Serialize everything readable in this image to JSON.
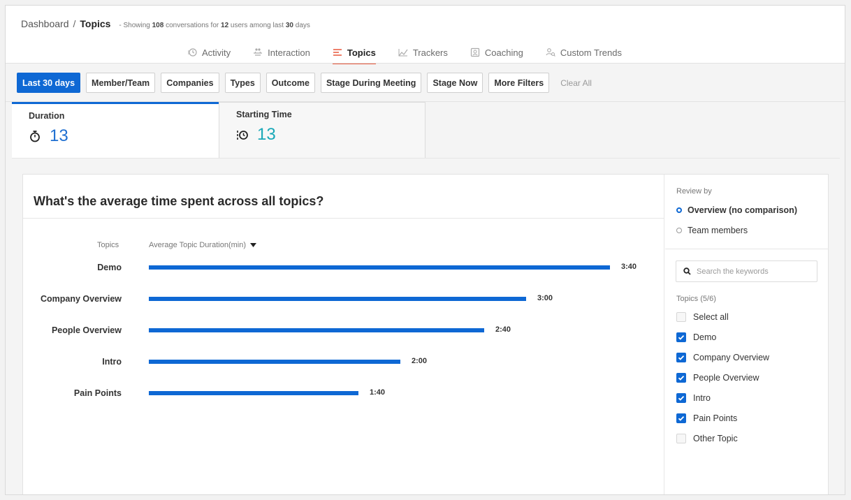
{
  "breadcrumb": {
    "root": "Dashboard",
    "separator": "/",
    "current": "Topics",
    "subtitle": {
      "prefix": "- Showing",
      "conversations": "108",
      "mid1": "conversations for",
      "users": "12",
      "mid2": "users among last",
      "days": "30",
      "suffix": "days"
    }
  },
  "nav": [
    {
      "label": "Activity",
      "icon": "activity-icon",
      "active": false
    },
    {
      "label": "Interaction",
      "icon": "interaction-icon",
      "active": false
    },
    {
      "label": "Topics",
      "icon": "topics-icon",
      "active": true
    },
    {
      "label": "Trackers",
      "icon": "trackers-icon",
      "active": false
    },
    {
      "label": "Coaching",
      "icon": "coaching-icon",
      "active": false
    },
    {
      "label": "Custom Trends",
      "icon": "custom-trends-icon",
      "active": false
    }
  ],
  "filters": {
    "buttons": [
      "Last 30 days",
      "Member/Team",
      "Companies",
      "Types",
      "Outcome",
      "Stage During Meeting",
      "Stage Now",
      "More Filters"
    ],
    "clear": "Clear All"
  },
  "metrics": [
    {
      "label": "Duration",
      "value": "13",
      "icon": "stopwatch-icon"
    },
    {
      "label": "Starting Time",
      "value": "13",
      "icon": "clock-start-icon"
    }
  ],
  "card": {
    "question": "What's the average time spent across all topics?",
    "col_topics": "Topics",
    "col_metric": "Average Topic Duration(min)"
  },
  "chart_data": {
    "type": "bar",
    "orientation": "horizontal",
    "categories": [
      "Demo",
      "Company Overview",
      "People Overview",
      "Intro",
      "Pain Points"
    ],
    "values": [
      3.6667,
      3.0,
      2.6667,
      2.0,
      1.6667
    ],
    "value_labels": [
      "3:40",
      "3:00",
      "2:40",
      "2:00",
      "1:40"
    ],
    "xlabel": "Average Topic Duration(min)",
    "ylabel": "Topics",
    "color": "#0e68d4"
  },
  "review": {
    "title": "Review by",
    "options": [
      {
        "label": "Overview (no comparison)",
        "selected": true
      },
      {
        "label": "Team members",
        "selected": false
      }
    ]
  },
  "search": {
    "placeholder": "Search the keywords"
  },
  "topic_list": {
    "title": "Topics (5/6)",
    "items": [
      {
        "label": "Select all",
        "checked": false
      },
      {
        "label": "Demo",
        "checked": true
      },
      {
        "label": "Company Overview",
        "checked": true
      },
      {
        "label": "People Overview",
        "checked": true
      },
      {
        "label": "Intro",
        "checked": true
      },
      {
        "label": "Pain Points",
        "checked": true
      },
      {
        "label": "Other Topic",
        "checked": false
      }
    ]
  },
  "colors": {
    "primary": "#0e68d4",
    "accent_tab": "#e8573a",
    "duration_value": "#1f6fd1",
    "starting_time_value": "#19a8b8"
  }
}
